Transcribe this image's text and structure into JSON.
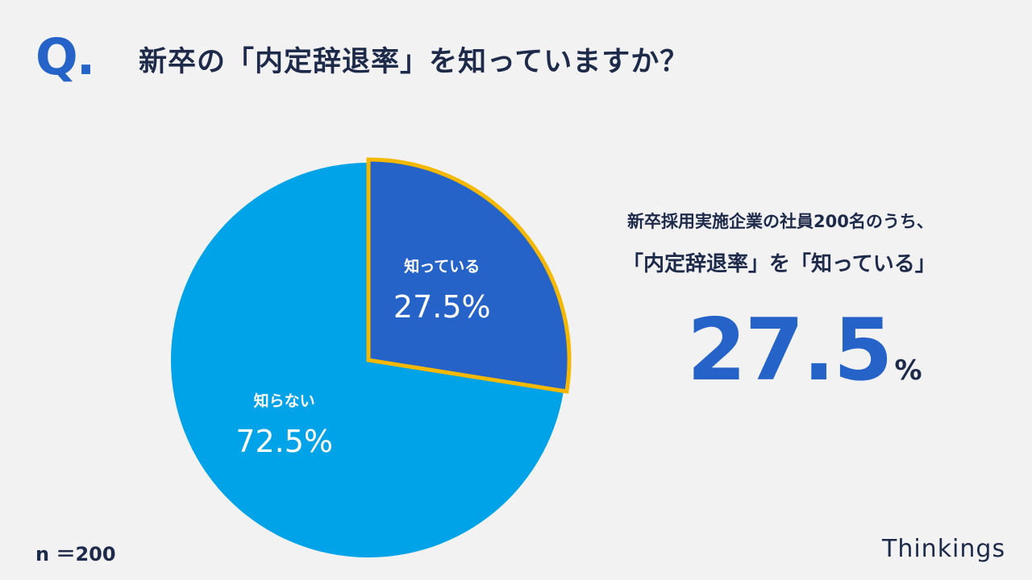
{
  "header": {
    "q_mark": "Q.",
    "question": "新卒の「内定辞退率」を知っていますか？"
  },
  "chart_data": {
    "type": "pie",
    "categories": [
      "知っている",
      "知らない"
    ],
    "values": [
      27.5,
      72.5
    ],
    "value_labels": [
      "27.5%",
      "72.5%"
    ],
    "colors": [
      "#2563c9",
      "#00a3e8"
    ],
    "highlight_color": "#f5b800",
    "highlight_index": 0,
    "start_angle": 0,
    "direction": "clockwise"
  },
  "stat": {
    "line1": "新卒採用実施企業の社員200名のうち、",
    "line2": "「内定辞退率」を「知っている」",
    "number": "27.5",
    "unit": "%"
  },
  "footer": {
    "sample_size": "n ＝200",
    "brand": "Thinkings"
  }
}
